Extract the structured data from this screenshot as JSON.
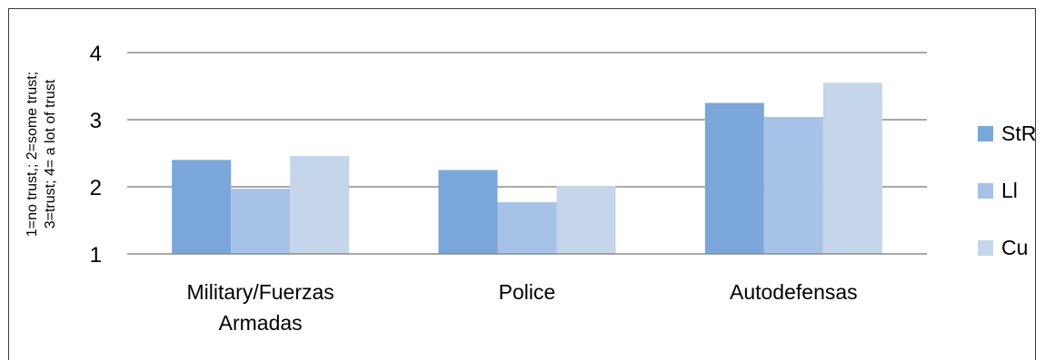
{
  "chart_data": {
    "type": "bar",
    "categories": [
      [
        "Military/Fuerzas",
        "Armadas"
      ],
      [
        "Police"
      ],
      [
        "Autodefensas"
      ]
    ],
    "series": [
      {
        "name": "StR",
        "values": [
          2.4,
          2.25,
          3.25
        ],
        "color": "#7aa6d9"
      },
      {
        "name": "Ll",
        "values": [
          1.97,
          1.77,
          3.04
        ],
        "color": "#a6c2e6"
      },
      {
        "name": "Cu",
        "values": [
          2.46,
          2.01,
          3.55
        ],
        "color": "#c5d5ea"
      }
    ],
    "ylabel": [
      "1=no trust,; 2=some trust;",
      "3=trust; 4= a lot of trust"
    ],
    "ylim": [
      1,
      4
    ],
    "yticks": [
      1,
      2,
      3,
      4
    ],
    "grid": true,
    "legend_position": "right"
  }
}
